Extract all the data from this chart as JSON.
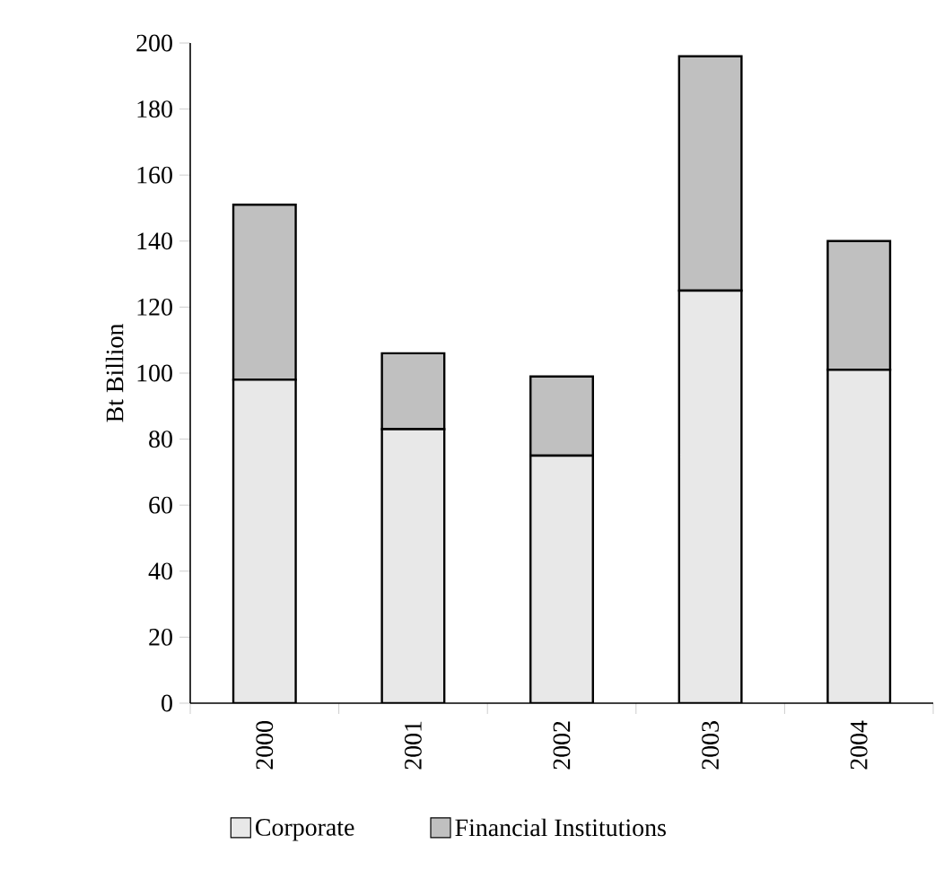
{
  "chart_data": {
    "type": "bar",
    "stacked": true,
    "ylabel": "Bt Billion",
    "categories": [
      "2000",
      "2001",
      "2002",
      "2003",
      "2004"
    ],
    "series": [
      {
        "name": "Corporate",
        "color": "#e8e8e8",
        "values": [
          98,
          83,
          75,
          125,
          101
        ]
      },
      {
        "name": "Financial Institutions",
        "color": "#c0c0c0",
        "values": [
          53,
          23,
          24,
          71,
          39
        ]
      }
    ],
    "ylim": [
      0,
      200
    ],
    "yticks": [
      0,
      20,
      40,
      60,
      80,
      100,
      120,
      140,
      160,
      180,
      200
    ],
    "grid": false,
    "legend": "bottom"
  }
}
